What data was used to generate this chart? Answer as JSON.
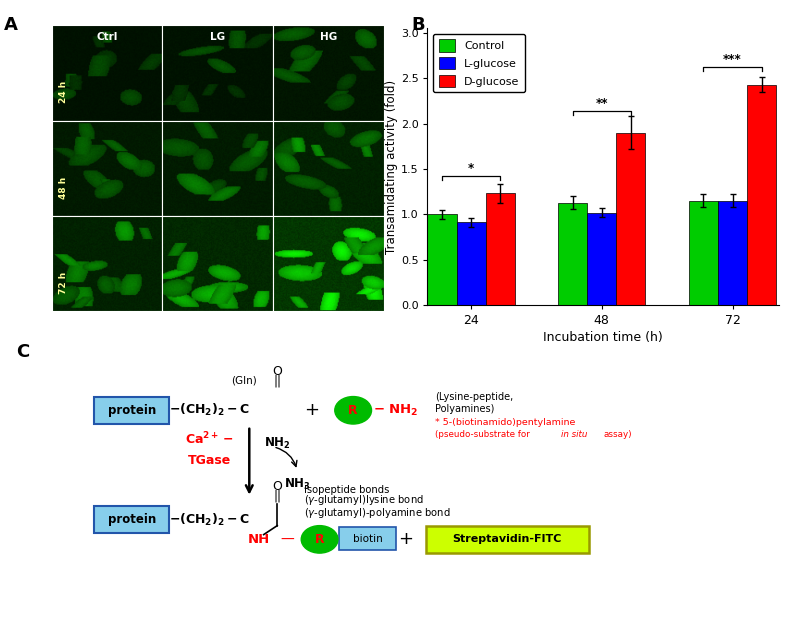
{
  "panel_labels": [
    "A",
    "B",
    "C"
  ],
  "bar_groups": [
    "24",
    "48",
    "72"
  ],
  "bar_categories": [
    "Control",
    "L-glucose",
    "D-glucose"
  ],
  "bar_colors": [
    "#00cc00",
    "#0000ff",
    "#ff0000"
  ],
  "bar_values": {
    "24": [
      1.0,
      0.91,
      1.23
    ],
    "48": [
      1.13,
      1.02,
      1.9
    ],
    "72": [
      1.15,
      1.15,
      2.43
    ]
  },
  "bar_errors": {
    "24": [
      0.05,
      0.05,
      0.1
    ],
    "48": [
      0.07,
      0.05,
      0.18
    ],
    "72": [
      0.07,
      0.07,
      0.08
    ]
  },
  "ylabel": "Transamidating activity (fold)",
  "xlabel": "Incubation time (h)",
  "ylim": [
    0.0,
    3.0
  ],
  "yticks": [
    0.0,
    0.5,
    1.0,
    1.5,
    2.0,
    2.5,
    3.0
  ],
  "sig_24": "*",
  "sig_48": "**",
  "sig_72": "***",
  "bg_color": "#ffffff",
  "panel_A_rows": [
    "24 h",
    "48 h",
    "72 h"
  ],
  "panel_A_cols": [
    "Ctrl",
    "LG",
    "HG"
  ],
  "brightness_table": [
    [
      0.3,
      0.32,
      0.38
    ],
    [
      0.45,
      0.48,
      0.58
    ],
    [
      0.58,
      0.7,
      0.95
    ]
  ]
}
